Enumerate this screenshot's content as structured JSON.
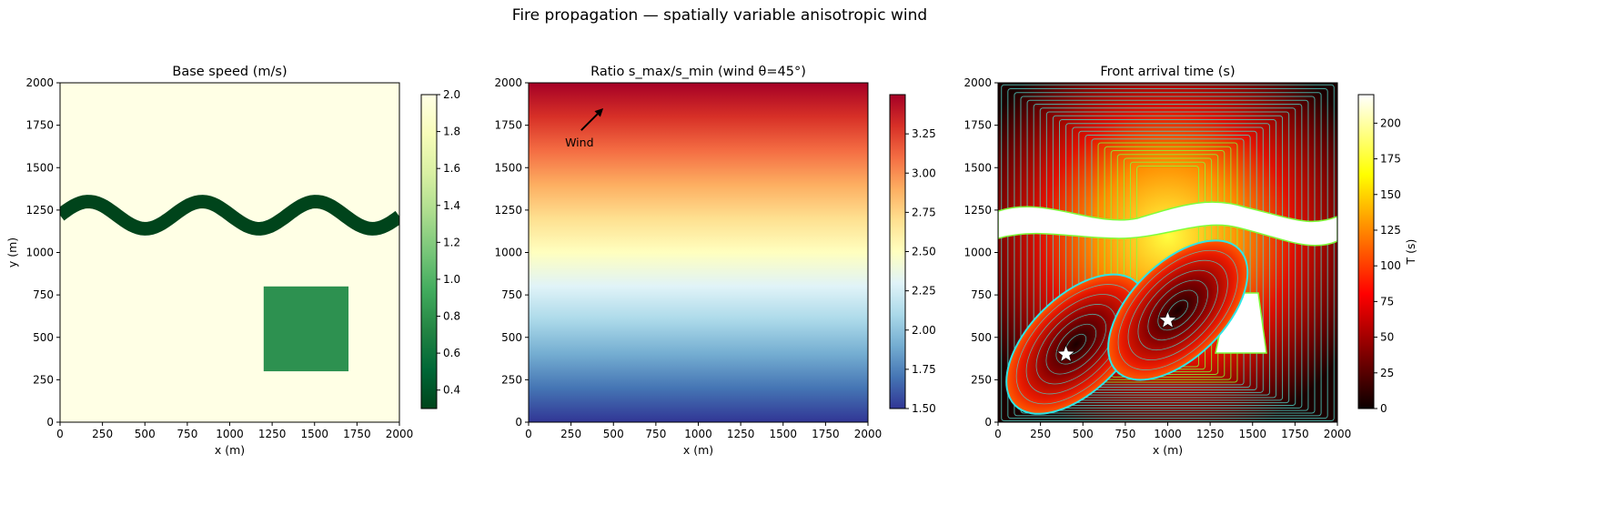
{
  "suptitle": "Fire propagation — spatially variable anisotropic wind",
  "colors": {
    "dark_green": "#00441b",
    "mid_green": "#2d9150",
    "pale_yellow": "#ffffe5",
    "contour_line": "#4fd1c5",
    "contour_bright": "#7fff3a",
    "wind_arrow": "#000000",
    "star": "#ffffff"
  },
  "chart_data": [
    {
      "type": "heatmap",
      "title": "Base speed (m/s)",
      "xlabel": "x (m)",
      "ylabel": "y (m)",
      "xlim": [
        0,
        2000
      ],
      "ylim": [
        0,
        2000
      ],
      "xticks": [
        "0",
        "250",
        "500",
        "750",
        "1000",
        "1250",
        "1500",
        "1750",
        "2000"
      ],
      "yticks": [
        "0",
        "250",
        "500",
        "750",
        "1000",
        "1250",
        "1500",
        "1750",
        "2000"
      ],
      "colormap": "YlGn_r",
      "background_value": 2.0,
      "features": [
        {
          "kind": "sinusoidal_band",
          "value": 0.3,
          "center_y": 1220,
          "amplitude": 80,
          "wavelength": 670,
          "thickness": 80
        },
        {
          "kind": "rectangle",
          "value": 0.9,
          "x": [
            1200,
            1700
          ],
          "y": [
            300,
            800
          ]
        }
      ],
      "colorbar": {
        "label": "",
        "range": [
          0.3,
          2.0
        ],
        "ticks": [
          "0.4",
          "0.6",
          "0.8",
          "1.0",
          "1.2",
          "1.4",
          "1.6",
          "1.8",
          "2.0"
        ]
      }
    },
    {
      "type": "heatmap",
      "title": "Ratio s_max/s_min (wind θ=45°)",
      "xlabel": "x (m)",
      "ylabel": "",
      "xlim": [
        0,
        2000
      ],
      "ylim": [
        0,
        2000
      ],
      "xticks": [
        "0",
        "250",
        "500",
        "750",
        "1000",
        "1250",
        "1500",
        "1750",
        "2000"
      ],
      "yticks": [
        "0",
        "250",
        "500",
        "750",
        "1000",
        "1250",
        "1500",
        "1750",
        "2000"
      ],
      "colormap": "RdYlBu_r",
      "gradient": {
        "direction": "vertical",
        "value_at_y0": 1.5,
        "value_at_y2000": 3.5
      },
      "annotation": {
        "text": "Wind",
        "arrow_from": [
          310,
          1720
        ],
        "arrow_to": [
          440,
          1850
        ]
      },
      "colorbar": {
        "label": "",
        "range": [
          1.5,
          3.5
        ],
        "ticks": [
          "1.50",
          "1.75",
          "2.00",
          "2.25",
          "2.50",
          "2.75",
          "3.00",
          "3.25"
        ]
      }
    },
    {
      "type": "heatmap",
      "title": "Front arrival time (s)",
      "xlabel": "x (m)",
      "ylabel": "",
      "xlim": [
        0,
        2000
      ],
      "ylim": [
        0,
        2000
      ],
      "xticks": [
        "0",
        "250",
        "500",
        "750",
        "1000",
        "1250",
        "1500",
        "1750",
        "2000"
      ],
      "yticks": [
        "0",
        "250",
        "500",
        "750",
        "1000",
        "1250",
        "1500",
        "1750",
        "2000"
      ],
      "colormap": "hot",
      "ignition_points": [
        {
          "x": 400,
          "y": 400
        },
        {
          "x": 1000,
          "y": 600
        }
      ],
      "contour_levels": 22,
      "colorbar": {
        "label": "T (s)",
        "range": [
          0,
          220
        ],
        "ticks": [
          "0",
          "25",
          "50",
          "75",
          "100",
          "125",
          "150",
          "175",
          "200"
        ]
      }
    }
  ]
}
